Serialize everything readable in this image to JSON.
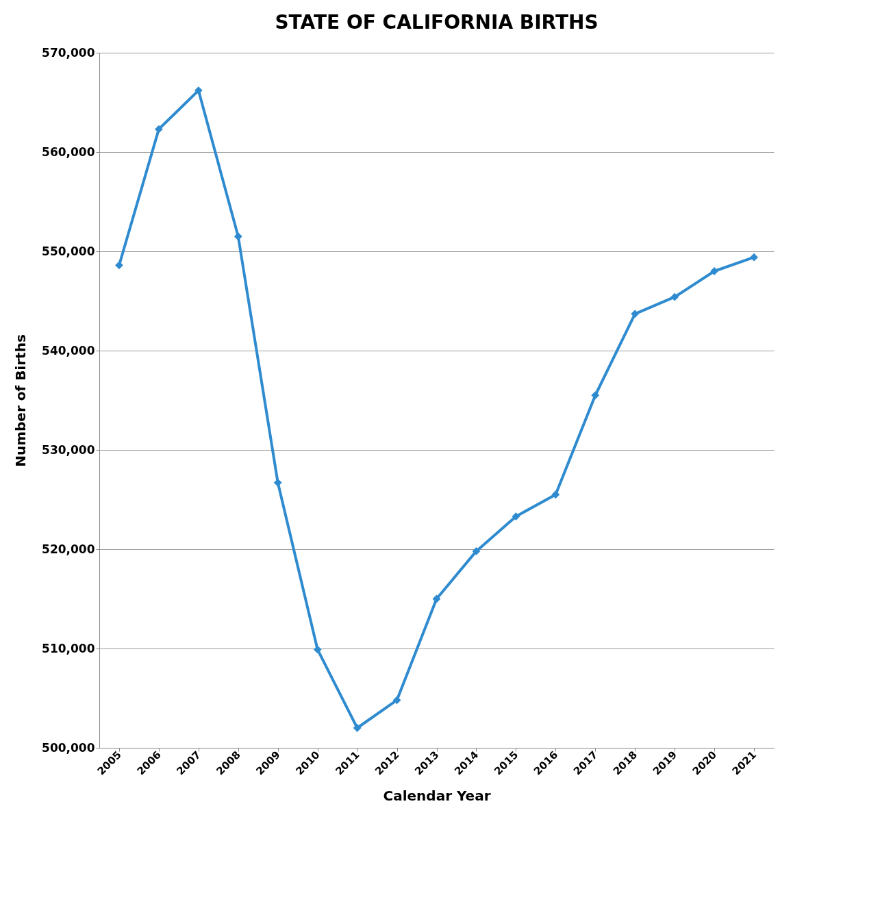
{
  "chart_data": {
    "type": "line",
    "title": "STATE OF CALIFORNIA BIRTHS",
    "xlabel": "Calendar Year",
    "ylabel": "Number of Births",
    "categories": [
      "2005",
      "2006",
      "2007",
      "2008",
      "2009",
      "2010",
      "2011",
      "2012",
      "2013",
      "2014",
      "2015",
      "2016",
      "2017",
      "2018",
      "2019",
      "2020",
      "2021"
    ],
    "series": [
      {
        "color": "#2f8bcf",
        "values": [
          548600,
          562300,
          566200,
          551500,
          526700,
          509900,
          502000,
          504800,
          515000,
          519800,
          523300,
          525500,
          535500,
          543700,
          545400,
          548000,
          549400
        ]
      }
    ],
    "ylim": [
      500000,
      570000
    ],
    "yticks": [
      {
        "value": 500000,
        "label": "500,000"
      },
      {
        "value": 510000,
        "label": "510,000"
      },
      {
        "value": 520000,
        "label": "520,000"
      },
      {
        "value": 530000,
        "label": "530,000"
      },
      {
        "value": 540000,
        "label": "540,000"
      },
      {
        "value": 550000,
        "label": "550,000"
      },
      {
        "value": 560000,
        "label": "560,000"
      },
      {
        "value": 570000,
        "label": "570,000"
      }
    ],
    "grid": "y",
    "legend": false,
    "marker": "diamond",
    "line_style": "solid"
  }
}
